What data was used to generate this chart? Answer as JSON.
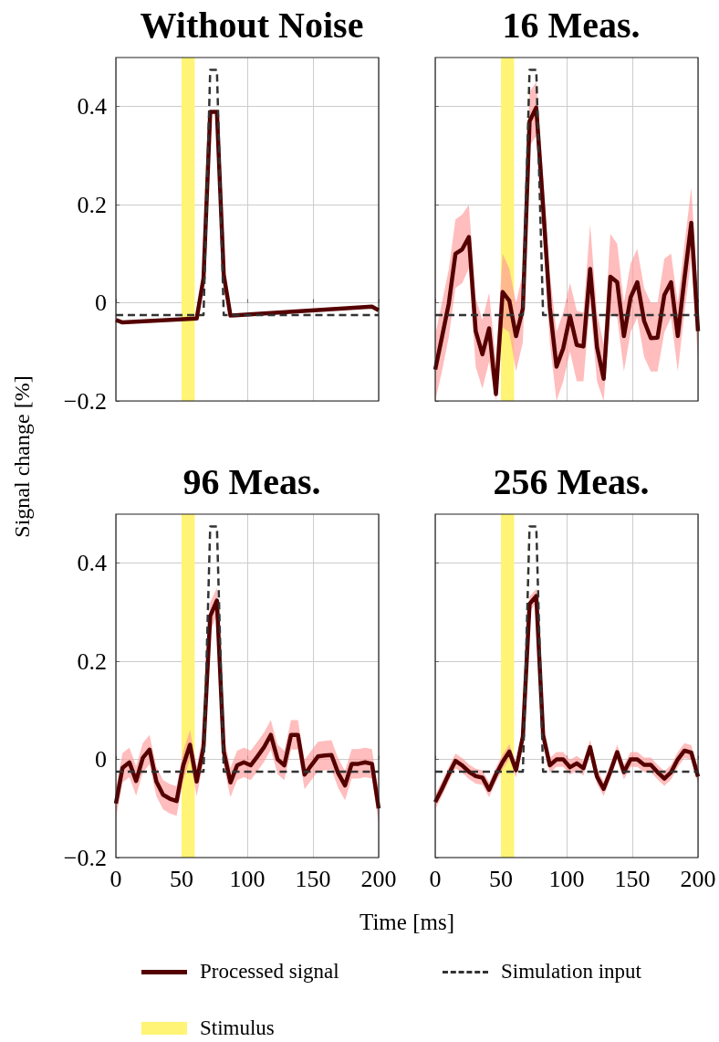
{
  "chart_data": [
    {
      "type": "line",
      "title": "Without Noise",
      "ylabel": "Signal change [%]",
      "legend": "bottom",
      "grid": true,
      "marker": "none",
      "tick_labels": "y",
      "xlim": [
        0,
        200
      ],
      "xticks": [
        0,
        50,
        100,
        150,
        200
      ],
      "ylim": [
        -0.2,
        0.5
      ],
      "yticks": [
        {
          "value": -0.2,
          "label": "−0.2"
        },
        0,
        0.2,
        0.4
      ],
      "bands": [
        {
          "axis": "x",
          "from": 50,
          "to": 60,
          "label": "Stimulus",
          "color": "#fff475"
        }
      ],
      "series": [
        {
          "name": "Processed signal",
          "color": "#550000",
          "line_style": "solid",
          "x": [
            0,
            5.1,
            61.5,
            66.7,
            71.8,
            76.9,
            82.1,
            87.2,
            194.9,
            200
          ],
          "values": [
            -0.035,
            -0.04,
            -0.032,
            0.05,
            0.389,
            0.389,
            0.057,
            -0.026,
            -0.008,
            -0.015
          ]
        },
        {
          "name": "Simulation input",
          "color": "#333333",
          "line_style": "dashed",
          "x": [
            0,
            66.7,
            71.8,
            76.9,
            82.1,
            200
          ],
          "values": [
            -0.025,
            -0.025,
            0.475,
            0.475,
            -0.025,
            -0.025
          ]
        }
      ]
    },
    {
      "type": "line",
      "title": "16 Meas.",
      "grid": true,
      "marker": "none",
      "tick_labels": false,
      "xlim": [
        0,
        200
      ],
      "xticks": [
        0,
        50,
        100,
        150,
        200
      ],
      "ylim": [
        -0.2,
        0.5
      ],
      "yticks": [
        -0.2,
        0,
        0.2,
        0.4
      ],
      "bands": [
        {
          "axis": "x",
          "from": 50,
          "to": 60,
          "color": "#fff475"
        }
      ],
      "x": [
        0,
        5.1,
        10.3,
        15.4,
        20.5,
        25.6,
        30.8,
        35.9,
        41,
        46.2,
        51.3,
        56.4,
        61.5,
        66.7,
        71.8,
        76.9,
        82.1,
        87.2,
        92.3,
        97.4,
        102.6,
        107.7,
        112.8,
        117.9,
        123.1,
        128.2,
        133.3,
        138.5,
        143.6,
        148.7,
        153.8,
        159,
        164.1,
        169.2,
        174.4,
        179.5,
        184.6,
        189.7,
        194.9,
        200
      ],
      "series": [
        {
          "color": "#550000",
          "line_style": "solid",
          "values": [
            -0.136,
            -0.07,
            -0.002,
            0.1,
            0.109,
            0.134,
            -0.058,
            -0.105,
            -0.052,
            -0.186,
            0.022,
            0.004,
            -0.068,
            -0.012,
            0.37,
            0.398,
            0.196,
            -0.009,
            -0.13,
            -0.093,
            -0.027,
            -0.086,
            -0.089,
            0.069,
            -0.09,
            -0.155,
            0.053,
            0.042,
            -0.068,
            0.011,
            0.042,
            -0.037,
            -0.072,
            -0.071,
            0.016,
            0.042,
            -0.068,
            0.05,
            0.163,
            -0.058
          ],
          "upper": [
            -0.066,
            0,
            0.068,
            0.17,
            0.18,
            0.2,
            0.01,
            -0.035,
            0.02,
            -0.12,
            0.1,
            0.07,
            0,
            0.06,
            0.43,
            0.45,
            0.26,
            0.06,
            -0.06,
            -0.02,
            0.04,
            -0.016,
            -0.02,
            0.16,
            -0.02,
            -0.085,
            0.14,
            0.12,
            0,
            0.08,
            0.11,
            0.03,
            0,
            0,
            0.09,
            0.1,
            0,
            0.12,
            0.235,
            0.01
          ],
          "lower": [
            -0.2,
            -0.14,
            -0.07,
            0.03,
            0.04,
            0.07,
            -0.13,
            -0.175,
            -0.12,
            -0.2,
            -0.05,
            -0.06,
            -0.14,
            -0.08,
            0.32,
            0.34,
            0.14,
            -0.08,
            -0.2,
            -0.16,
            -0.1,
            -0.16,
            -0.16,
            0,
            -0.16,
            -0.2,
            -0.02,
            -0.03,
            -0.14,
            -0.06,
            -0.03,
            -0.11,
            -0.14,
            -0.14,
            -0.06,
            -0.03,
            -0.14,
            -0.02,
            0.09,
            -0.12
          ]
        },
        {
          "color": "#333333",
          "line_style": "dashed",
          "x": [
            0,
            66.7,
            71.8,
            76.9,
            82.1,
            200
          ],
          "values": [
            -0.025,
            -0.025,
            0.475,
            0.475,
            -0.025,
            -0.025
          ]
        }
      ]
    },
    {
      "type": "line",
      "title": "96 Meas.",
      "xlabel": "Time [ms]",
      "grid": true,
      "marker": "none",
      "xlim": [
        0,
        200
      ],
      "xticks": [
        0,
        50,
        100,
        150,
        200
      ],
      "ylim": [
        -0.2,
        0.5
      ],
      "yticks": [
        {
          "value": -0.2,
          "label": "−0.2"
        },
        0,
        0.2,
        0.4
      ],
      "bands": [
        {
          "axis": "x",
          "from": 50,
          "to": 60,
          "color": "#fff475"
        }
      ],
      "x": [
        0,
        5.1,
        10.3,
        15.4,
        20.5,
        25.6,
        30.8,
        35.9,
        41,
        46.2,
        51.3,
        56.4,
        61.5,
        66.7,
        71.8,
        76.9,
        82.1,
        87.2,
        92.3,
        97.4,
        102.6,
        107.7,
        112.8,
        117.9,
        123.1,
        128.2,
        133.3,
        138.5,
        143.6,
        148.7,
        153.8,
        159,
        164.1,
        169.2,
        174.4,
        179.5,
        184.6,
        189.7,
        194.9,
        200
      ],
      "series": [
        {
          "color": "#550000",
          "line_style": "solid",
          "values": [
            -0.09,
            -0.017,
            -0.006,
            -0.044,
            0.003,
            0.02,
            -0.045,
            -0.072,
            -0.08,
            -0.085,
            -0.012,
            0.03,
            -0.045,
            0.025,
            0.292,
            0.324,
            0.016,
            -0.047,
            -0.012,
            -0.006,
            -0.012,
            0.006,
            0.025,
            0.05,
            0,
            -0.012,
            0.05,
            0.05,
            -0.031,
            -0.012,
            0.006,
            0.008,
            0.009,
            -0.028,
            -0.053,
            -0.009,
            -0.009,
            -0.006,
            -0.009,
            -0.1
          ],
          "upper": [
            -0.06,
            0.013,
            0.024,
            -0.014,
            0.033,
            0.05,
            -0.015,
            -0.042,
            -0.05,
            -0.055,
            0.018,
            0.06,
            -0.015,
            0.055,
            0.32,
            0.35,
            0.046,
            -0.017,
            0.018,
            0.024,
            0.018,
            0.036,
            0.055,
            0.08,
            0.03,
            0.018,
            0.08,
            0.08,
            -0.001,
            0.018,
            0.036,
            0.038,
            0.039,
            0.002,
            -0.023,
            0.021,
            0.021,
            0.024,
            0.021,
            -0.07
          ],
          "lower": [
            -0.12,
            -0.047,
            -0.036,
            -0.074,
            -0.027,
            -0.01,
            -0.075,
            -0.102,
            -0.11,
            -0.115,
            -0.042,
            0,
            -0.075,
            -0.005,
            0.262,
            0.294,
            -0.014,
            -0.077,
            -0.042,
            -0.036,
            -0.042,
            -0.024,
            -0.005,
            0.02,
            -0.03,
            -0.042,
            0.02,
            0.02,
            -0.061,
            -0.042,
            -0.024,
            -0.022,
            -0.021,
            -0.058,
            -0.083,
            -0.039,
            -0.039,
            -0.036,
            -0.039,
            -0.13
          ]
        },
        {
          "color": "#333333",
          "line_style": "dashed",
          "x": [
            0,
            66.7,
            71.8,
            76.9,
            82.1,
            200
          ],
          "values": [
            -0.025,
            -0.025,
            0.475,
            0.475,
            -0.025,
            -0.025
          ]
        }
      ]
    },
    {
      "type": "line",
      "title": "256 Meas.",
      "grid": true,
      "marker": "none",
      "tick_labels": "x",
      "xlim": [
        0,
        200
      ],
      "xticks": [
        0,
        50,
        100,
        150,
        200
      ],
      "ylim": [
        -0.2,
        0.5
      ],
      "yticks": [
        -0.2,
        0,
        0.2,
        0.4
      ],
      "bands": [
        {
          "axis": "x",
          "from": 50,
          "to": 60,
          "color": "#fff475"
        }
      ],
      "x": [
        0,
        5.1,
        10.3,
        15.4,
        20.5,
        25.6,
        30.8,
        35.9,
        41,
        46.2,
        51.3,
        56.4,
        61.5,
        66.7,
        71.8,
        76.9,
        82.1,
        87.2,
        92.3,
        97.4,
        102.6,
        107.7,
        112.8,
        117.9,
        123.1,
        128.2,
        133.3,
        138.5,
        143.6,
        148.7,
        153.8,
        159,
        164.1,
        169.2,
        174.4,
        179.5,
        184.6,
        189.7,
        194.9,
        200
      ],
      "series": [
        {
          "color": "#550000",
          "line_style": "solid",
          "values": [
            -0.087,
            -0.06,
            -0.03,
            -0.003,
            -0.012,
            -0.025,
            -0.034,
            -0.037,
            -0.062,
            -0.031,
            -0.005,
            0.016,
            -0.022,
            0.047,
            0.317,
            0.333,
            0.05,
            -0.012,
            0,
            0,
            -0.016,
            -0.008,
            -0.018,
            0.025,
            -0.035,
            -0.06,
            -0.025,
            0.015,
            -0.026,
            0,
            0,
            -0.011,
            -0.011,
            -0.026,
            -0.039,
            -0.026,
            0,
            0.018,
            0.014,
            -0.035
          ],
          "upper": [
            -0.072,
            -0.045,
            -0.015,
            0.012,
            0.003,
            -0.01,
            -0.019,
            -0.022,
            -0.047,
            -0.016,
            0.01,
            0.031,
            -0.007,
            0.062,
            0.332,
            0.348,
            0.065,
            0.003,
            0.015,
            0.015,
            -0.001,
            0.007,
            -0.003,
            0.04,
            -0.02,
            -0.045,
            -0.01,
            0.03,
            -0.011,
            0.015,
            0.015,
            0.004,
            0.004,
            -0.011,
            -0.024,
            -0.011,
            0.015,
            0.033,
            0.029,
            -0.02
          ],
          "lower": [
            -0.102,
            -0.075,
            -0.045,
            -0.018,
            -0.027,
            -0.04,
            -0.049,
            -0.052,
            -0.077,
            -0.046,
            -0.02,
            0.001,
            -0.037,
            0.032,
            0.302,
            0.318,
            0.035,
            -0.027,
            -0.015,
            -0.015,
            -0.031,
            -0.023,
            -0.033,
            0.01,
            -0.05,
            -0.075,
            -0.04,
            0,
            -0.041,
            -0.015,
            -0.015,
            -0.026,
            -0.026,
            -0.041,
            -0.054,
            -0.041,
            -0.015,
            0.003,
            -0.001,
            -0.05
          ]
        },
        {
          "color": "#333333",
          "line_style": "dashed",
          "x": [
            0,
            66.7,
            71.8,
            76.9,
            82.1,
            200
          ],
          "values": [
            -0.025,
            -0.025,
            0.475,
            0.475,
            -0.025,
            -0.025
          ]
        }
      ]
    }
  ]
}
